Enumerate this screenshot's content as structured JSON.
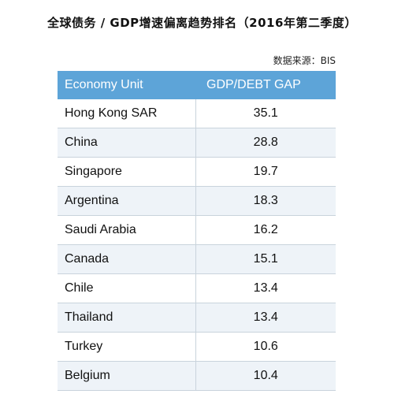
{
  "title": "全球债务 / GDP增速偏离趋势排名（2016年第二季度）",
  "source": "数据来源：BIS",
  "chart_data": {
    "type": "table",
    "columns": [
      "Economy Unit",
      "GDP/DEBT GAP"
    ],
    "rows": [
      {
        "economy": "Hong Kong SAR",
        "gap": "35.1"
      },
      {
        "economy": "China",
        "gap": "28.8"
      },
      {
        "economy": "Singapore",
        "gap": "19.7"
      },
      {
        "economy": "Argentina",
        "gap": "18.3"
      },
      {
        "economy": "Saudi Arabia",
        "gap": "16.2"
      },
      {
        "economy": "Canada",
        "gap": "15.1"
      },
      {
        "economy": "Chile",
        "gap": "13.4"
      },
      {
        "economy": "Thailand",
        "gap": "13.4"
      },
      {
        "economy": "Turkey",
        "gap": "10.6"
      },
      {
        "economy": "Belgium",
        "gap": "10.4"
      }
    ],
    "header_color": "#5da4d8",
    "stripe_color": "#eef3f8"
  }
}
